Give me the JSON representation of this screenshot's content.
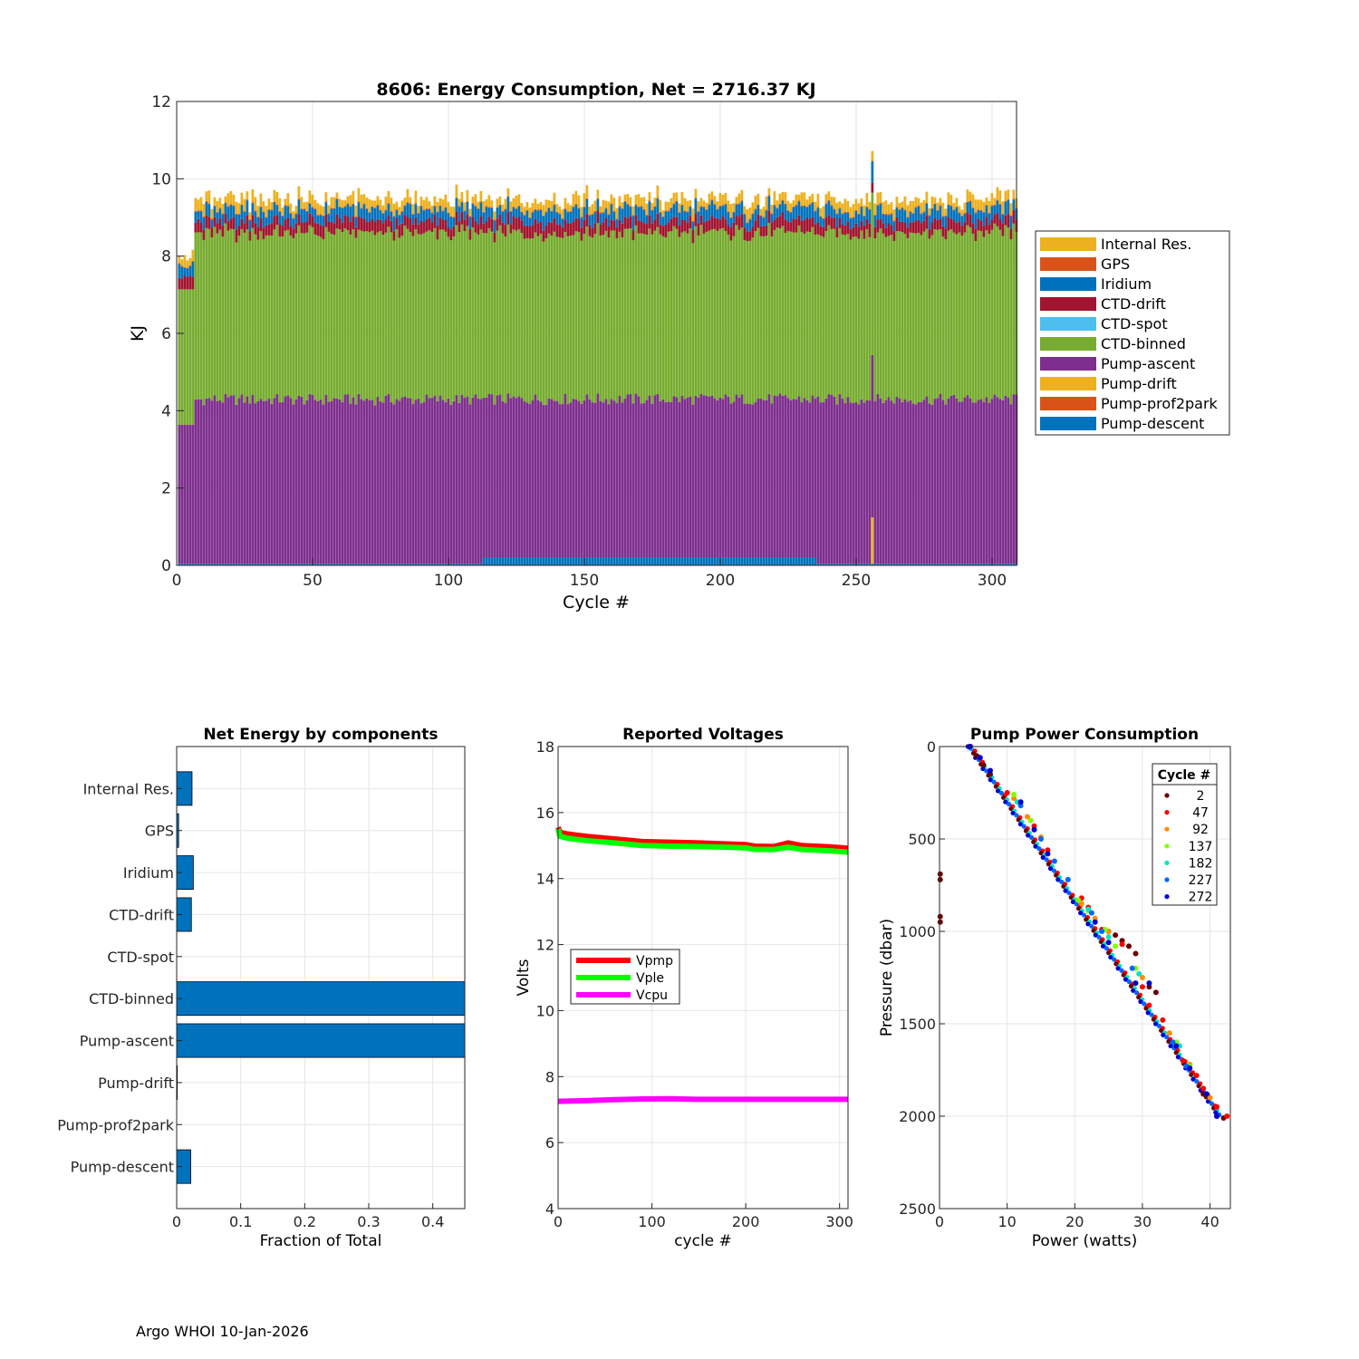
{
  "footer": "Argo WHOI 10-Jan-2026",
  "colors": {
    "internal_res": "#EDB120",
    "gps": "#D95319",
    "iridium": "#0072BD",
    "ctd_drift": "#A2142F",
    "ctd_spot": "#4DBEEE",
    "ctd_binned": "#77AC30",
    "pump_ascent": "#7E2F8E",
    "pump_drift": "#EDB120",
    "pump_prof2park": "#D95319",
    "pump_descent": "#0072BD",
    "vpmp": "#FF0000",
    "vple": "#00FF00",
    "vcpu": "#FF00FF"
  },
  "chart_data": [
    {
      "type": "bar",
      "stacked": true,
      "title": "8606: Energy Consumption,  Net = 2716.37 KJ",
      "xlabel": "Cycle #",
      "ylabel": "KJ",
      "xlim": [
        0,
        309
      ],
      "ylim": [
        0,
        12
      ],
      "xticks": [
        0,
        50,
        100,
        150,
        200,
        250,
        300
      ],
      "yticks": [
        0,
        2,
        4,
        6,
        8,
        10,
        12
      ],
      "grid": true,
      "legend_position": "right",
      "legend": [
        "Internal Res.",
        "GPS",
        "Iridium",
        "CTD-drift",
        "CTD-spot",
        "CTD-binned",
        "Pump-ascent",
        "Pump-drift",
        "Pump-prof2park",
        "Pump-descent"
      ],
      "cycles": [
        1,
        309
      ],
      "typical_stack_kj": {
        "Pump-descent": 0.04,
        "Pump-prof2park": 0.0,
        "Pump-drift": 0.0,
        "Pump-ascent": 4.25,
        "CTD-spot": 0.0,
        "CTD-binned": 4.3,
        "CTD-drift": 0.3,
        "Iridium": 0.3,
        "GPS": 0.02,
        "Internal Res.": 0.25
      },
      "segment_notes": {
        "cycles_113_to_235_pump_descent_kj": 0.2,
        "cycle_256_total_kj": 10.55,
        "cycle_256_pump_drift_kj": 1.2
      }
    },
    {
      "type": "bar",
      "orientation": "horizontal",
      "title": "Net Energy by components",
      "xlabel": "Fraction of Total",
      "xlim": [
        0,
        0.45
      ],
      "xticks": [
        0,
        0.1,
        0.2,
        0.3,
        0.4
      ],
      "xtick_labels": [
        "0",
        "0.1",
        "0.2",
        "0.3",
        "0.4"
      ],
      "grid": true,
      "categories": [
        "Internal Res.",
        "GPS",
        "Iridium",
        "CTD-drift",
        "CTD-spot",
        "CTD-binned",
        "Pump-ascent",
        "Pump-drift",
        "Pump-prof2park",
        "Pump-descent"
      ],
      "values": [
        0.024,
        0.003,
        0.026,
        0.023,
        0.0,
        0.452,
        0.461,
        0.001,
        0.0,
        0.022
      ]
    },
    {
      "type": "line",
      "title": "Reported Voltages",
      "xlabel": "cycle #",
      "ylabel": "Volts",
      "xlim": [
        0,
        309
      ],
      "ylim": [
        4,
        18
      ],
      "xticks": [
        0,
        100,
        200,
        300
      ],
      "yticks": [
        4,
        6,
        8,
        10,
        12,
        14,
        16,
        18
      ],
      "grid": true,
      "legend_position": "left",
      "series": [
        {
          "name": "Vpmp",
          "x": [
            0,
            2,
            10,
            30,
            60,
            90,
            120,
            150,
            180,
            200,
            210,
            230,
            245,
            260,
            290,
            309
          ],
          "values": [
            15.55,
            15.4,
            15.35,
            15.28,
            15.2,
            15.12,
            15.1,
            15.08,
            15.05,
            15.03,
            14.98,
            14.97,
            15.08,
            15.0,
            14.96,
            14.92
          ]
        },
        {
          "name": "Vple",
          "x": [
            0,
            2,
            10,
            30,
            60,
            90,
            120,
            150,
            180,
            200,
            210,
            230,
            245,
            260,
            290,
            309
          ],
          "values": [
            15.5,
            15.28,
            15.22,
            15.15,
            15.08,
            15.0,
            14.98,
            14.97,
            14.95,
            14.93,
            14.88,
            14.88,
            14.95,
            14.88,
            14.84,
            14.8
          ]
        },
        {
          "name": "Vcpu",
          "x": [
            0,
            30,
            60,
            90,
            120,
            150,
            200,
            250,
            309
          ],
          "values": [
            7.25,
            7.27,
            7.3,
            7.32,
            7.33,
            7.31,
            7.31,
            7.31,
            7.31
          ]
        }
      ]
    },
    {
      "type": "scatter",
      "title": "Pump Power Consumption",
      "xlabel": "Power (watts)",
      "ylabel": "Pressure (dbar)",
      "xlim": [
        0,
        43
      ],
      "ylim": [
        0,
        2500
      ],
      "y_reversed": true,
      "xticks": [
        0,
        10,
        20,
        30,
        40
      ],
      "yticks": [
        0,
        500,
        1000,
        1500,
        2000,
        2500
      ],
      "grid": true,
      "legend_title": "Cycle #",
      "legend_position": "top-right",
      "series": [
        {
          "name": "2",
          "color": "#6B0000",
          "points": [
            [
              4.5,
              0
            ],
            [
              5.5,
              50
            ],
            [
              6.5,
              100
            ],
            [
              7.5,
              150
            ],
            [
              0.1,
              690
            ],
            [
              0.1,
              720
            ],
            [
              0.1,
              920
            ],
            [
              0.1,
              950
            ],
            [
              25,
              1000
            ],
            [
              26,
              1020
            ],
            [
              27,
              1050
            ],
            [
              28,
              1080
            ],
            [
              29,
              1120
            ],
            [
              31,
              1300
            ],
            [
              32,
              1330
            ],
            [
              39,
              1880
            ],
            [
              41,
              2000
            ],
            [
              42,
              2010
            ]
          ]
        },
        {
          "name": "47",
          "color": "#FF0000",
          "points": [
            [
              4.6,
              0
            ],
            [
              10,
              250
            ],
            [
              12,
              300
            ],
            [
              14,
              430
            ],
            [
              16,
              560
            ],
            [
              21,
              820
            ],
            [
              22,
              870
            ],
            [
              24,
              990
            ],
            [
              27,
              1070
            ],
            [
              30,
              1300
            ],
            [
              31,
              1400
            ],
            [
              33,
              1480
            ],
            [
              35,
              1600
            ],
            [
              36,
              1700
            ],
            [
              38,
              1780
            ],
            [
              39,
              1850
            ],
            [
              41,
              1950
            ],
            [
              42.5,
              2000
            ]
          ]
        },
        {
          "name": "92",
          "color": "#FF8C00",
          "points": [
            [
              4.6,
              5
            ],
            [
              11,
              280
            ],
            [
              13,
              380
            ],
            [
              15,
              490
            ],
            [
              21,
              850
            ],
            [
              23,
              930
            ],
            [
              25,
              1000
            ],
            [
              30,
              1250
            ],
            [
              34,
              1550
            ],
            [
              37,
              1720
            ],
            [
              40,
              1900
            ]
          ]
        },
        {
          "name": "137",
          "color": "#7FFF00",
          "points": [
            [
              4.6,
              5
            ],
            [
              11,
              260
            ],
            [
              13.5,
              400
            ],
            [
              20.5,
              830
            ],
            [
              22,
              890
            ],
            [
              24.5,
              990
            ],
            [
              26,
              1080
            ],
            [
              29,
              1200
            ],
            [
              35,
              1600
            ],
            [
              37,
              1730
            ]
          ]
        },
        {
          "name": "182",
          "color": "#00E5C0",
          "points": [
            [
              4.6,
              5
            ],
            [
              11.5,
              300
            ],
            [
              14,
              450
            ],
            [
              22,
              880
            ],
            [
              25,
              1030
            ],
            [
              29.5,
              1230
            ],
            [
              35.5,
              1620
            ],
            [
              39.5,
              1880
            ]
          ]
        },
        {
          "name": "227",
          "color": "#0066FF",
          "points": [
            [
              4.5,
              5
            ],
            [
              12,
              320
            ],
            [
              15,
              500
            ],
            [
              17,
              620
            ],
            [
              19,
              720
            ],
            [
              22.5,
              900
            ],
            [
              24,
              1000
            ],
            [
              28.5,
              1200
            ],
            [
              34.5,
              1600
            ],
            [
              36.5,
              1730
            ],
            [
              41,
              2000
            ]
          ]
        },
        {
          "name": "272",
          "color": "#0000CD",
          "points": [
            [
              4.5,
              0
            ],
            [
              6,
              60
            ],
            [
              7.5,
              130
            ],
            [
              12,
              300
            ],
            [
              14,
              450
            ],
            [
              16,
              580
            ],
            [
              23,
              950
            ],
            [
              25,
              1060
            ],
            [
              29,
              1280
            ],
            [
              31,
              1280
            ],
            [
              35,
              1620
            ],
            [
              37,
              1740
            ],
            [
              39.5,
              1880
            ],
            [
              41,
              2000
            ]
          ]
        }
      ]
    }
  ]
}
